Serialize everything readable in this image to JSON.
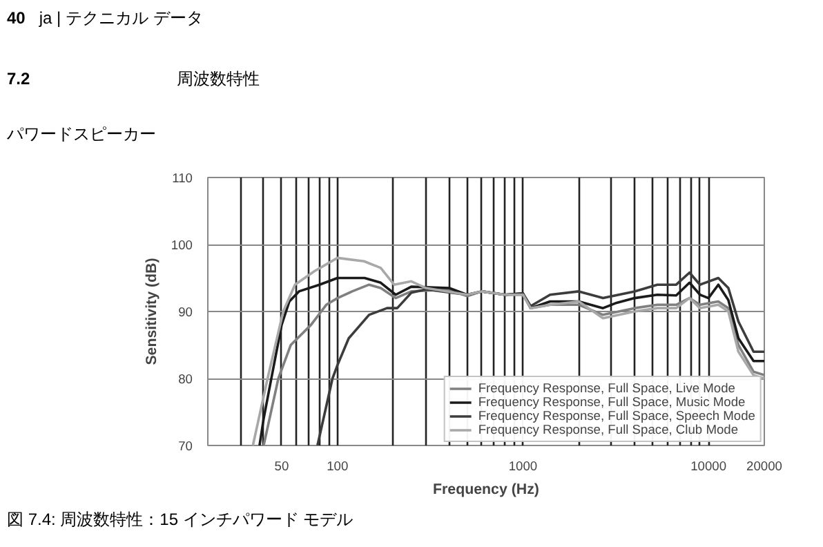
{
  "chart_data": {
    "type": "line",
    "title": "周波数特性",
    "subtitle": "パワードスピーカー",
    "xlabel": "Frequency (Hz)",
    "ylabel": "Sensitivity (dB)",
    "annotations": [
      "40",
      "ja | テクニカル データ",
      "7.2",
      "図 7.4: 周波数特性：15 インチパワード モデル"
    ],
    "log": "x",
    "grid": true,
    "legend": "bottom right",
    "line_style": "solid",
    "marker": "none",
    "xlim": [
      20,
      20000
    ],
    "ylim": [
      70,
      110
    ],
    "xticks": [
      {
        "value": 30,
        "label": null
      },
      {
        "value": 40,
        "label": null
      },
      50,
      {
        "value": 60,
        "label": null
      },
      {
        "value": 70,
        "label": null
      },
      {
        "value": 80,
        "label": null
      },
      {
        "value": 90,
        "label": null
      },
      100,
      {
        "value": 200,
        "label": null
      },
      {
        "value": 300,
        "label": null
      },
      {
        "value": 400,
        "label": null
      },
      {
        "value": 500,
        "label": null
      },
      {
        "value": 600,
        "label": null
      },
      {
        "value": 700,
        "label": null
      },
      {
        "value": 800,
        "label": null
      },
      {
        "value": 900,
        "label": null
      },
      1000,
      {
        "value": 2000,
        "label": null
      },
      {
        "value": 3000,
        "label": null
      },
      {
        "value": 4000,
        "label": null
      },
      {
        "value": 5000,
        "label": null
      },
      {
        "value": 6000,
        "label": null
      },
      {
        "value": 7000,
        "label": null
      },
      {
        "value": 8000,
        "label": null
      },
      {
        "value": 9000,
        "label": null
      },
      10000,
      20000
    ],
    "yticks": [
      70,
      80,
      90,
      100,
      110
    ],
    "series": [
      {
        "name": "Frequency Response, Full Space, Live Mode",
        "color": "#808080",
        "x": [
          40,
          48,
          56,
          72,
          87,
          100,
          120,
          148,
          171,
          206,
          250,
          400,
          500,
          600,
          800,
          1000,
          1100,
          1400,
          2000,
          2700,
          4000,
          5300,
          6700,
          7900,
          9000,
          11300,
          12800,
          14500,
          17500,
          20000
        ],
        "values": [
          70,
          80,
          85,
          88,
          91,
          92,
          93,
          94,
          93.5,
          92,
          93,
          93.3,
          92.3,
          93,
          92.5,
          92.5,
          90.5,
          91,
          91,
          89.5,
          90.5,
          91,
          91,
          92,
          91,
          91.5,
          90.5,
          85,
          81,
          80.5
        ]
      },
      {
        "name": "Frequency Response, Full Space, Music Mode",
        "color": "#1a1a1a",
        "x": [
          38,
          40,
          44,
          50,
          55,
          62,
          80,
          100,
          140,
          171,
          206,
          250,
          400,
          500,
          600,
          800,
          1000,
          1100,
          1400,
          2000,
          2700,
          3200,
          4000,
          5300,
          6700,
          7900,
          9000,
          10000,
          11300,
          12800,
          14500,
          17500,
          20000
        ],
        "values": [
          70,
          74,
          80,
          88,
          91.5,
          93,
          94,
          95,
          95,
          94.3,
          92.5,
          93.7,
          93.5,
          92.5,
          93,
          92.5,
          92.7,
          90.5,
          91.5,
          91.5,
          90.5,
          91.3,
          92,
          92.5,
          92.4,
          94.3,
          92.5,
          92,
          94,
          91.7,
          86,
          82.6,
          82.6
        ]
      },
      {
        "name": "Frequency Response, Full Space, Speech Mode",
        "color": "#3c3c3c",
        "x": [
          78,
          94,
          100,
          115,
          148,
          185,
          210,
          250,
          300,
          500,
          600,
          800,
          1000,
          1100,
          1400,
          2000,
          2700,
          4000,
          5300,
          6700,
          7900,
          9000,
          11300,
          12800,
          14500,
          17500,
          20000
        ],
        "values": [
          70,
          80,
          82,
          86,
          89.5,
          90.5,
          90.5,
          92.8,
          93.3,
          92.5,
          93,
          92.5,
          92.7,
          90.8,
          92.5,
          93,
          92,
          93,
          94,
          94,
          95.8,
          94,
          95,
          93.5,
          88.5,
          84,
          84
        ]
      },
      {
        "name": "Frequency Response, Full Space, Club Mode",
        "color": "#a8a8a8",
        "x": [
          35,
          42,
          51,
          59,
          75,
          100,
          139,
          171,
          202,
          250,
          300,
          500,
          600,
          800,
          1000,
          1100,
          1400,
          2000,
          2700,
          4000,
          5300,
          6700,
          7900,
          9000,
          11300,
          12800,
          14500,
          17500,
          20000
        ],
        "values": [
          70,
          80,
          90,
          94,
          96,
          98,
          97.5,
          96.5,
          94,
          94.5,
          93.5,
          92.5,
          93,
          92.5,
          92.5,
          90.5,
          91,
          91.5,
          89,
          90,
          90.5,
          90.5,
          92,
          90.5,
          91,
          90,
          84,
          80.5,
          80
        ]
      }
    ]
  }
}
